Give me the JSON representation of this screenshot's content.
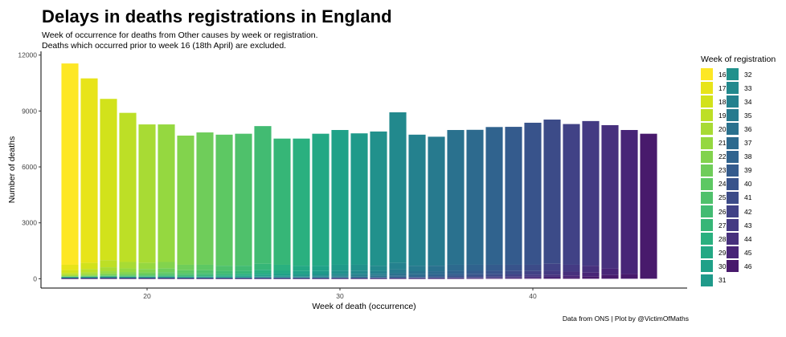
{
  "title": "Delays in deaths registrations in England",
  "subtitle_lines": [
    "Week of occurrence for deaths from Other causes by week or registration.",
    "Deaths which occurred prior to week 16 (18th April) are excluded."
  ],
  "caption": "Data from ONS | Plot by @VictimOfMaths",
  "legend_title": "Week of registration",
  "chart_data": {
    "type": "bar",
    "stacked": true,
    "title": "Delays in deaths registrations in England",
    "xlabel": "Week of death (occurrence)",
    "ylabel": "Number of deaths",
    "xlim": [
      14.5,
      48
    ],
    "ylim": [
      -500,
      12200
    ],
    "x_ticks": [
      20,
      30,
      40
    ],
    "y_ticks": [
      0,
      3000,
      6000,
      9000,
      12000
    ],
    "legend_position": "right",
    "grid": false,
    "x": [
      16,
      17,
      18,
      19,
      20,
      21,
      22,
      23,
      24,
      25,
      26,
      27,
      28,
      29,
      30,
      31,
      32,
      33,
      34,
      35,
      36,
      37,
      38,
      39,
      40,
      41,
      42,
      43,
      44,
      45,
      46
    ],
    "totals": [
      11550,
      10750,
      9650,
      8900,
      8280,
      8280,
      7680,
      7850,
      7730,
      7780,
      8190,
      7520,
      7520,
      7780,
      7980,
      7800,
      7900,
      8930,
      7730,
      7620,
      7980,
      7990,
      8140,
      8150,
      8370,
      8540,
      8300,
      8460,
      8240,
      7980,
      7780
    ],
    "late_registrations": [
      750,
      850,
      1000,
      900,
      850,
      900,
      750,
      750,
      700,
      700,
      800,
      750,
      700,
      700,
      750,
      750,
      700,
      850,
      700,
      700,
      750,
      750,
      750,
      750,
      750,
      800,
      750,
      700,
      550,
      250,
      0
    ],
    "registration_weeks": [
      16,
      17,
      18,
      19,
      20,
      21,
      22,
      23,
      24,
      25,
      26,
      27,
      28,
      29,
      30,
      31,
      32,
      33,
      34,
      35,
      36,
      37,
      38,
      39,
      40,
      41,
      42,
      43,
      44,
      45,
      46
    ],
    "colors": [
      "#FDE725",
      "#E8E419",
      "#D2E21B",
      "#BDDF26",
      "#A8DB34",
      "#95D840",
      "#82D34D",
      "#6FCD5A",
      "#5DC863",
      "#4FC16B",
      "#42BB72",
      "#36B677",
      "#2AB07F",
      "#23A884",
      "#1FA188",
      "#1F9A8A",
      "#21918C",
      "#22898D",
      "#24818E",
      "#277A8E",
      "#2A718E",
      "#2D6A8E",
      "#30638E",
      "#345B8D",
      "#38538B",
      "#3C4B88",
      "#414286",
      "#443A83",
      "#47307D",
      "#482577",
      "#481A6C"
    ]
  }
}
